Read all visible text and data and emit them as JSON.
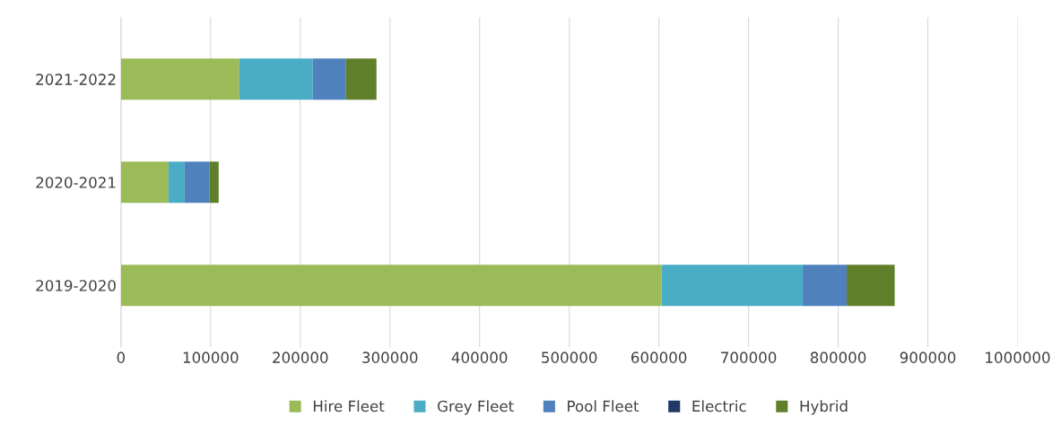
{
  "chart_data": {
    "type": "bar",
    "orientation": "horizontal",
    "stacked": true,
    "categories": [
      "2021-2022",
      "2020-2021",
      "2019-2020"
    ],
    "series": [
      {
        "name": "Hire Fleet",
        "color": "#9bbb59",
        "values": [
          132000,
          53000,
          603000
        ]
      },
      {
        "name": "Grey Fleet",
        "color": "#4bacc6",
        "values": [
          82000,
          18000,
          157500
        ]
      },
      {
        "name": "Pool Fleet",
        "color": "#4f81bd",
        "values": [
          37000,
          27500,
          49000
        ]
      },
      {
        "name": "Electric",
        "color": "#1f3864",
        "values": [
          0,
          0,
          0
        ]
      },
      {
        "name": "Hybrid",
        "color": "#5f7f2a",
        "values": [
          34000,
          10500,
          53500
        ]
      }
    ],
    "xlim": [
      0,
      1000000
    ],
    "xticks": [
      0,
      100000,
      200000,
      300000,
      400000,
      500000,
      600000,
      700000,
      800000,
      900000,
      1000000
    ],
    "grid": "x",
    "legend": "bottom"
  }
}
